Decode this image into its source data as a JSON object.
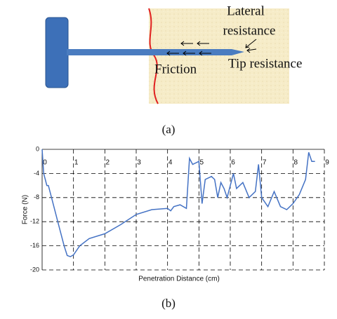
{
  "diagram": {
    "caption": "(a)",
    "labels": [
      "Lateral",
      "resistance",
      "Friction",
      "Tip resistance"
    ]
  },
  "chart_data": {
    "type": "line",
    "caption": "(b)",
    "x_label": "Penetration Distance (cm)",
    "y_label": "Force (N)",
    "xlim": [
      0,
      9
    ],
    "xticks": [
      0,
      1,
      2,
      3,
      4,
      5,
      6,
      7,
      8,
      9
    ],
    "ylim": [
      -20,
      0
    ],
    "yticks": [
      0,
      -4,
      -8,
      -12,
      -16,
      -20
    ],
    "grid": true,
    "series": [
      {
        "color": "#4472c4",
        "x": [
          0,
          0.05,
          0.1,
          0.15,
          0.2,
          0.3,
          0.5,
          0.7,
          0.8,
          0.9,
          1.0,
          1.2,
          1.5,
          2,
          2.5,
          3,
          3.5,
          4,
          4.1,
          4.2,
          4.4,
          4.6,
          4.7,
          4.8,
          5.0,
          5.1,
          5.2,
          5.4,
          5.5,
          5.6,
          5.7,
          5.8,
          5.9,
          6.0,
          6.1,
          6.2,
          6.4,
          6.6,
          6.8,
          6.9,
          7.0,
          7.2,
          7.4,
          7.6,
          7.8,
          8.0,
          8.2,
          8.4,
          8.5,
          8.6,
          8.7
        ],
        "values": [
          0,
          -4,
          -5,
          -6,
          -6,
          -8,
          -12,
          -16,
          -17.6,
          -17.8,
          -17.5,
          -16,
          -14.8,
          -14,
          -12.5,
          -10.8,
          -10,
          -9.8,
          -10.2,
          -9.5,
          -9.2,
          -9.8,
          -1.5,
          -2.5,
          -2,
          -9,
          -5,
          -4.5,
          -5,
          -8,
          -5.5,
          -6.5,
          -8,
          -6,
          -4,
          -6.5,
          -5.5,
          -8,
          -7,
          -2.5,
          -8,
          -9.5,
          -7,
          -9.5,
          -10,
          -9,
          -7.5,
          -5,
          -0.5,
          -2,
          -2
        ]
      }
    ]
  }
}
